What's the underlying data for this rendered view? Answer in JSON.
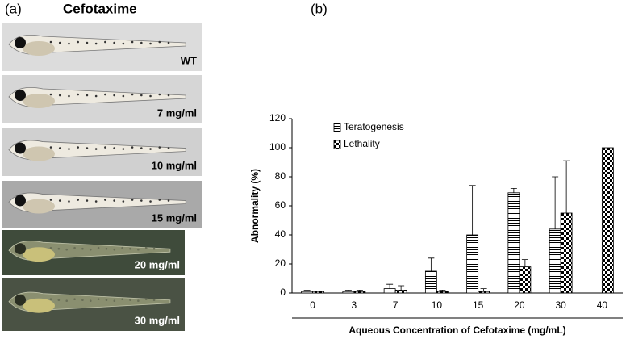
{
  "panel_a": {
    "label": "(a)",
    "title": "Cefotaxime",
    "images": [
      {
        "label": "WT"
      },
      {
        "label": "7 mg/ml"
      },
      {
        "label": "10 mg/ml"
      },
      {
        "label": "15 mg/ml"
      },
      {
        "label": "20 mg/ml"
      },
      {
        "label": "30 mg/ml"
      }
    ]
  },
  "panel_b": {
    "label": "(b)"
  },
  "chart_data": {
    "type": "bar",
    "x_label": "Aqueous Concentration of Cefotaxime (mg/mL)",
    "y_label": "Abnormality (%)",
    "categories": [
      "0",
      "3",
      "7",
      "10",
      "15",
      "20",
      "30",
      "40"
    ],
    "series": [
      {
        "name": "Teratogenesis",
        "color": "#000000",
        "pattern": "horizontal-stripes",
        "values": [
          1,
          1,
          3,
          15,
          40,
          69,
          44,
          0
        ],
        "errors": [
          1,
          1,
          3,
          9,
          34,
          3,
          36,
          0
        ]
      },
      {
        "name": "Lethality",
        "color": "#000000",
        "pattern": "checkerboard",
        "values": [
          1,
          1,
          2,
          1,
          1,
          18,
          55,
          100
        ],
        "errors": [
          0,
          1,
          3,
          1,
          2,
          5,
          36,
          0
        ]
      }
    ],
    "ylim": [
      0,
      120
    ],
    "yticks": [
      0,
      20,
      40,
      60,
      80,
      100,
      120
    ],
    "grid": false,
    "legend": "top-left"
  }
}
